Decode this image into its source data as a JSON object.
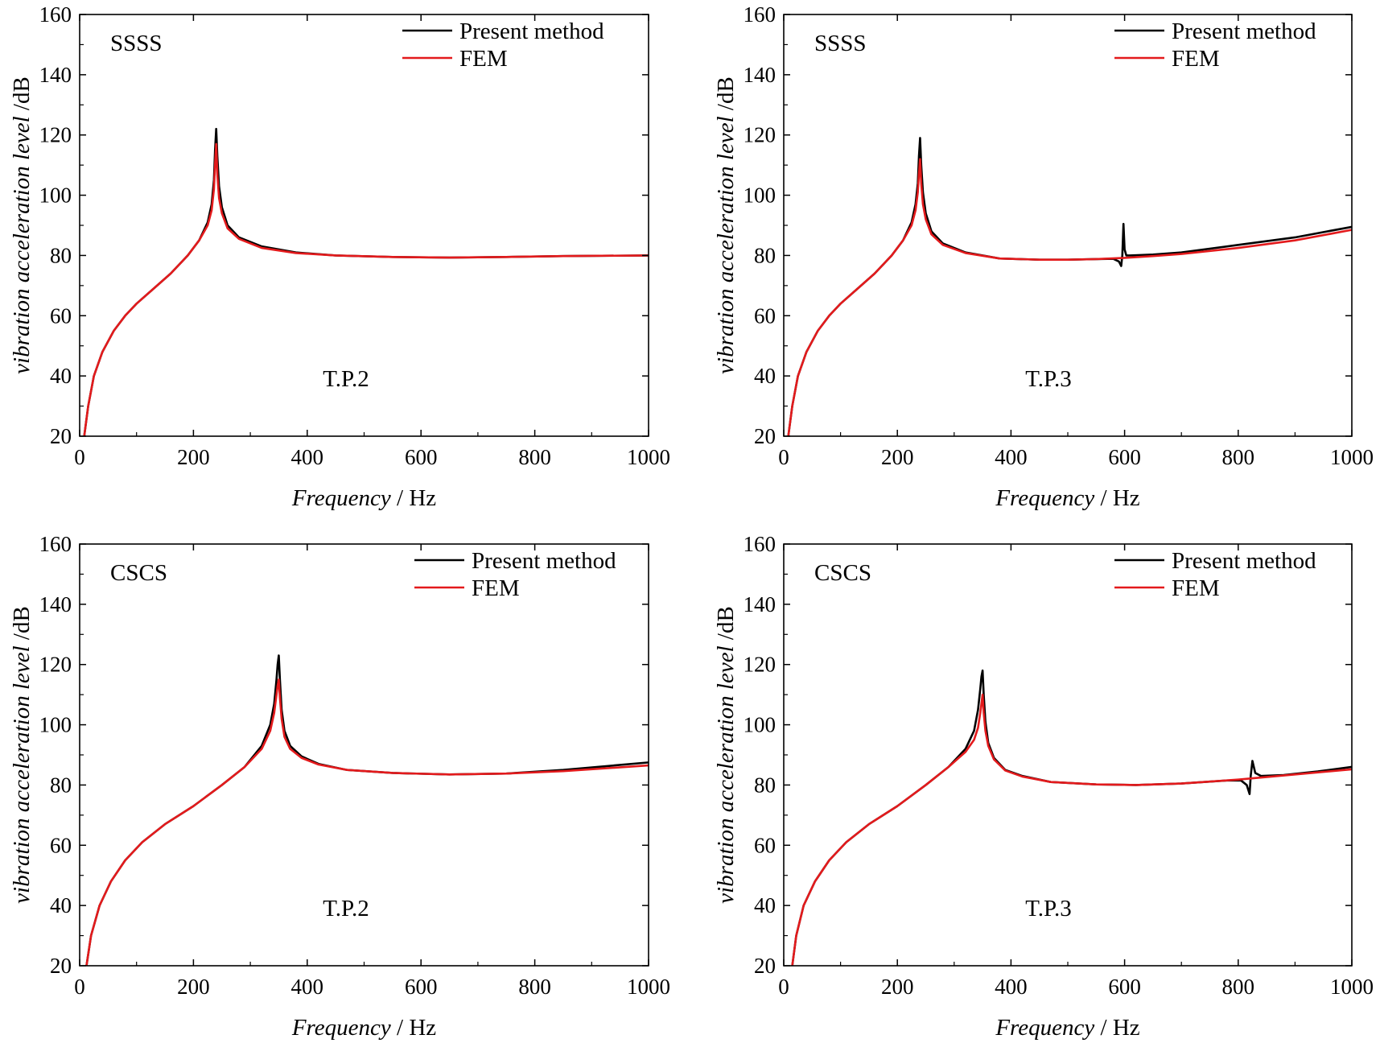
{
  "chart_data": [
    {
      "type": "line",
      "condition_label": "SSSS",
      "point_label": "T.P.2",
      "xlabel_italic": "Frequency",
      "xlabel_unit": " / Hz",
      "ylabel_italic": "vibration acceleration level",
      "ylabel_unit": " /dB",
      "xlim": [
        0,
        1000
      ],
      "ylim": [
        20,
        160
      ],
      "xticks": [
        0,
        200,
        400,
        600,
        800,
        1000
      ],
      "yticks": [
        20,
        40,
        60,
        80,
        100,
        120,
        140,
        160
      ],
      "legend_position": "top-right",
      "series": [
        {
          "name": "Present method",
          "color": "#000000",
          "x": [
            8,
            15,
            25,
            40,
            60,
            80,
            100,
            130,
            160,
            190,
            210,
            225,
            232,
            236,
            238,
            240,
            242,
            245,
            250,
            260,
            280,
            320,
            380,
            450,
            550,
            650,
            750,
            850,
            1000
          ],
          "y": [
            20,
            30,
            40,
            48,
            55,
            60,
            64,
            69,
            74,
            80,
            85,
            91,
            97,
            105,
            115,
            122,
            113,
            103,
            96,
            90,
            86,
            83,
            81,
            80,
            79.5,
            79.3,
            79.5,
            79.8,
            80
          ]
        },
        {
          "name": "FEM",
          "color": "#e31a1c",
          "x": [
            8,
            15,
            25,
            40,
            60,
            80,
            100,
            130,
            160,
            190,
            210,
            225,
            232,
            236,
            238,
            240,
            242,
            245,
            250,
            260,
            280,
            320,
            380,
            450,
            550,
            650,
            750,
            850,
            1000
          ],
          "y": [
            20,
            30,
            40,
            48,
            55,
            60,
            64,
            69,
            74,
            80,
            85,
            90,
            95,
            102,
            110,
            117,
            107,
            99,
            94,
            89,
            85.5,
            82.5,
            80.8,
            80,
            79.5,
            79.3,
            79.5,
            79.8,
            80
          ]
        }
      ]
    },
    {
      "type": "line",
      "condition_label": "SSSS",
      "point_label": "T.P.3",
      "xlabel_italic": "Frequency",
      "xlabel_unit": " / Hz",
      "ylabel_italic": "vibration acceleration level",
      "ylabel_unit": " /dB",
      "xlim": [
        0,
        1000
      ],
      "ylim": [
        20,
        160
      ],
      "xticks": [
        0,
        200,
        400,
        600,
        800,
        1000
      ],
      "yticks": [
        20,
        40,
        60,
        80,
        100,
        120,
        140,
        160
      ],
      "legend_position": "top-right",
      "series": [
        {
          "name": "Present method",
          "color": "#000000",
          "x": [
            8,
            15,
            25,
            40,
            60,
            80,
            100,
            130,
            160,
            190,
            210,
            225,
            232,
            236,
            238,
            240,
            242,
            245,
            250,
            260,
            280,
            320,
            380,
            450,
            500,
            550,
            580,
            590,
            594,
            596,
            598,
            600,
            603,
            610,
            650,
            700,
            800,
            900,
            1000
          ],
          "y": [
            20,
            30,
            40,
            48,
            55,
            60,
            64,
            69,
            74,
            80,
            85,
            91,
            97,
            104,
            113,
            119,
            110,
            101,
            94,
            88,
            84,
            81,
            79,
            78.6,
            78.6,
            78.8,
            78.9,
            78,
            76.5,
            80,
            90.5,
            82,
            80,
            80,
            80.3,
            81,
            83.5,
            86,
            89.5
          ]
        },
        {
          "name": "FEM",
          "color": "#e31a1c",
          "x": [
            8,
            15,
            25,
            40,
            60,
            80,
            100,
            130,
            160,
            190,
            210,
            225,
            232,
            236,
            238,
            240,
            242,
            245,
            250,
            260,
            280,
            320,
            380,
            450,
            500,
            550,
            600,
            650,
            700,
            800,
            900,
            1000
          ],
          "y": [
            20,
            30,
            40,
            48,
            55,
            60,
            64,
            69,
            74,
            80,
            85,
            90,
            95,
            101,
            107,
            112,
            104,
            97,
            92,
            87,
            83.5,
            80.8,
            79,
            78.6,
            78.6,
            78.8,
            79.2,
            79.8,
            80.5,
            82.5,
            85,
            88.5
          ]
        }
      ]
    },
    {
      "type": "line",
      "condition_label": "CSCS",
      "point_label": "T.P.2",
      "xlabel_italic": "Frequency",
      "xlabel_unit": " / Hz",
      "ylabel_italic": "vibration acceleration level",
      "ylabel_unit": " /dB",
      "xlim": [
        0,
        1000
      ],
      "ylim": [
        20,
        160
      ],
      "xticks": [
        0,
        200,
        400,
        600,
        800,
        1000
      ],
      "yticks": [
        20,
        40,
        60,
        80,
        100,
        120,
        140,
        160
      ],
      "legend_position": "top-right",
      "series": [
        {
          "name": "Present method",
          "color": "#000000",
          "x": [
            12,
            20,
            35,
            55,
            80,
            110,
            150,
            200,
            250,
            290,
            320,
            335,
            342,
            346,
            348,
            350,
            352,
            355,
            360,
            370,
            390,
            420,
            470,
            550,
            650,
            750,
            850,
            1000
          ],
          "y": [
            20,
            30,
            40,
            48,
            55,
            61,
            67,
            73,
            80,
            86,
            93,
            100,
            107,
            115,
            120,
            123,
            115,
            105,
            98,
            93,
            89.5,
            87,
            85,
            84,
            83.5,
            83.8,
            85,
            87.5
          ]
        },
        {
          "name": "FEM",
          "color": "#e31a1c",
          "x": [
            12,
            20,
            35,
            55,
            80,
            110,
            150,
            200,
            250,
            290,
            320,
            335,
            342,
            346,
            348,
            350,
            352,
            355,
            360,
            370,
            390,
            420,
            470,
            550,
            650,
            750,
            850,
            1000
          ],
          "y": [
            20,
            30,
            40,
            48,
            55,
            61,
            67,
            73,
            80,
            86,
            92,
            98,
            104,
            110,
            113,
            115,
            109,
            102,
            96,
            92,
            89,
            86.8,
            85,
            84,
            83.5,
            83.8,
            84.6,
            86.5
          ]
        }
      ]
    },
    {
      "type": "line",
      "condition_label": "CSCS",
      "point_label": "T.P.3",
      "xlabel_italic": "Frequency",
      "xlabel_unit": " / Hz",
      "ylabel_italic": "vibration acceleration level",
      "ylabel_unit": " /dB",
      "xlim": [
        0,
        1000
      ],
      "ylim": [
        20,
        160
      ],
      "xticks": [
        0,
        200,
        400,
        600,
        800,
        1000
      ],
      "yticks": [
        20,
        40,
        60,
        80,
        100,
        120,
        140,
        160
      ],
      "legend_position": "top-right",
      "series": [
        {
          "name": "Present method",
          "color": "#000000",
          "x": [
            15,
            22,
            35,
            55,
            80,
            110,
            150,
            200,
            250,
            290,
            320,
            335,
            342,
            346,
            348,
            350,
            352,
            355,
            360,
            370,
            390,
            420,
            470,
            550,
            620,
            700,
            780,
            805,
            815,
            820,
            822,
            825,
            830,
            840,
            880,
            940,
            1000
          ],
          "y": [
            20,
            30,
            40,
            48,
            55,
            61,
            67,
            73,
            80,
            86,
            92,
            98,
            105,
            112,
            116,
            118,
            110,
            101,
            94,
            89,
            85,
            83,
            81,
            80.2,
            80,
            80.5,
            81.5,
            81.5,
            80,
            77,
            83,
            88,
            84,
            83,
            83.3,
            84.5,
            86
          ]
        },
        {
          "name": "FEM",
          "color": "#e31a1c",
          "x": [
            15,
            22,
            35,
            55,
            80,
            110,
            150,
            200,
            250,
            290,
            320,
            335,
            342,
            346,
            348,
            350,
            352,
            355,
            360,
            370,
            390,
            420,
            470,
            550,
            620,
            700,
            800,
            900,
            1000
          ],
          "y": [
            20,
            30,
            40,
            48,
            55,
            61,
            67,
            73,
            80,
            86,
            91,
            95,
            99,
            104,
            107,
            110,
            104,
            98,
            93,
            88.5,
            84.8,
            82.8,
            81,
            80.2,
            80,
            80.5,
            81.8,
            83.5,
            85.2
          ]
        }
      ]
    }
  ]
}
